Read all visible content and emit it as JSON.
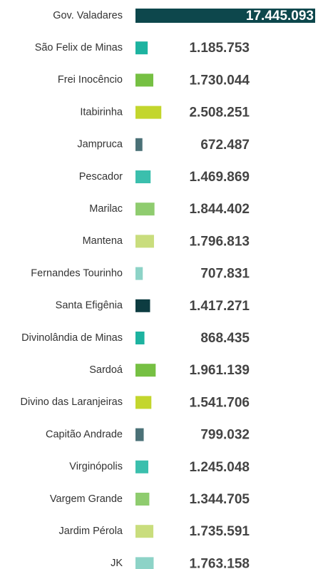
{
  "chart_data": {
    "type": "bar",
    "orientation": "horizontal",
    "categories": [
      "Gov. Valadares",
      "São Felix de Minas",
      "Frei Inocêncio",
      "Itabirinha",
      "Jampruca",
      "Pescador",
      "Marilac",
      "Mantena",
      "Fernandes Tourinho",
      "Santa Efigênia",
      "Divinolândia de Minas",
      "Sardoá",
      "Divino das Laranjeiras",
      "Capitão Andrade",
      "Virginópolis",
      "Vargem Grande",
      "Jardim Pérola",
      "JK"
    ],
    "values": [
      17445093,
      1185753,
      1730044,
      2508251,
      672487,
      1469869,
      1844402,
      1796813,
      707831,
      1417271,
      868435,
      1961139,
      1541706,
      799032,
      1245048,
      1344705,
      1735591,
      1763158
    ],
    "value_labels": [
      "17.445.093",
      "1.185.753",
      "1.730.044",
      "2.508.251",
      "672.487",
      "1.469.869",
      "1.844.402",
      "1.796.813",
      "707.831",
      "1.417.271",
      "868.435",
      "1.961.139",
      "1.541.706",
      "799.032",
      "1.245.048",
      "1.344.705",
      "1.735.591",
      "1.763.158"
    ],
    "colors": [
      "#0d474c",
      "#1db3a0",
      "#76c043",
      "#c3d62d",
      "#4b7177",
      "#3bbfad",
      "#8fcc6f",
      "#c9dd7d",
      "#8dd3c7",
      "#0d3c41",
      "#1db3a0",
      "#76c043",
      "#c3d62d",
      "#4b7177",
      "#3bbfad",
      "#8fcc6f",
      "#c9dd7d",
      "#8dd3c7"
    ]
  }
}
